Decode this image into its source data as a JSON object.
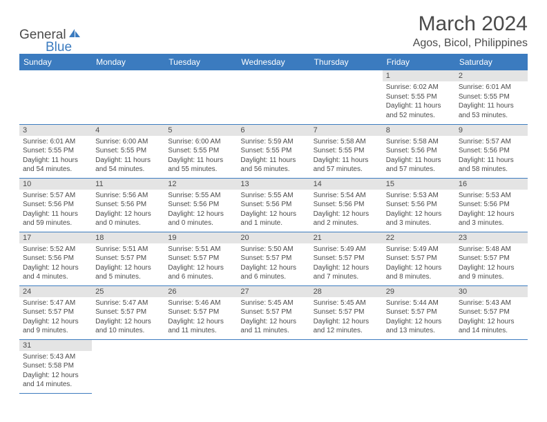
{
  "logo": {
    "text_general": "General",
    "text_blue": "Blue",
    "icon_color": "#3b7bbf"
  },
  "header": {
    "month_title": "March 2024",
    "location": "Agos, Bicol, Philippines"
  },
  "colors": {
    "header_bg": "#3b7bbf",
    "header_text": "#ffffff",
    "body_text": "#4a4a4a",
    "date_bar_bg": "#e4e4e4",
    "border": "#3b7bbf",
    "background": "#ffffff"
  },
  "day_headers": [
    "Sunday",
    "Monday",
    "Tuesday",
    "Wednesday",
    "Thursday",
    "Friday",
    "Saturday"
  ],
  "weeks": [
    [
      {
        "date": "",
        "sunrise": "",
        "sunset": "",
        "daylight": ""
      },
      {
        "date": "",
        "sunrise": "",
        "sunset": "",
        "daylight": ""
      },
      {
        "date": "",
        "sunrise": "",
        "sunset": "",
        "daylight": ""
      },
      {
        "date": "",
        "sunrise": "",
        "sunset": "",
        "daylight": ""
      },
      {
        "date": "",
        "sunrise": "",
        "sunset": "",
        "daylight": ""
      },
      {
        "date": "1",
        "sunrise": "Sunrise: 6:02 AM",
        "sunset": "Sunset: 5:55 PM",
        "daylight": "Daylight: 11 hours and 52 minutes."
      },
      {
        "date": "2",
        "sunrise": "Sunrise: 6:01 AM",
        "sunset": "Sunset: 5:55 PM",
        "daylight": "Daylight: 11 hours and 53 minutes."
      }
    ],
    [
      {
        "date": "3",
        "sunrise": "Sunrise: 6:01 AM",
        "sunset": "Sunset: 5:55 PM",
        "daylight": "Daylight: 11 hours and 54 minutes."
      },
      {
        "date": "4",
        "sunrise": "Sunrise: 6:00 AM",
        "sunset": "Sunset: 5:55 PM",
        "daylight": "Daylight: 11 hours and 54 minutes."
      },
      {
        "date": "5",
        "sunrise": "Sunrise: 6:00 AM",
        "sunset": "Sunset: 5:55 PM",
        "daylight": "Daylight: 11 hours and 55 minutes."
      },
      {
        "date": "6",
        "sunrise": "Sunrise: 5:59 AM",
        "sunset": "Sunset: 5:55 PM",
        "daylight": "Daylight: 11 hours and 56 minutes."
      },
      {
        "date": "7",
        "sunrise": "Sunrise: 5:58 AM",
        "sunset": "Sunset: 5:55 PM",
        "daylight": "Daylight: 11 hours and 57 minutes."
      },
      {
        "date": "8",
        "sunrise": "Sunrise: 5:58 AM",
        "sunset": "Sunset: 5:56 PM",
        "daylight": "Daylight: 11 hours and 57 minutes."
      },
      {
        "date": "9",
        "sunrise": "Sunrise: 5:57 AM",
        "sunset": "Sunset: 5:56 PM",
        "daylight": "Daylight: 11 hours and 58 minutes."
      }
    ],
    [
      {
        "date": "10",
        "sunrise": "Sunrise: 5:57 AM",
        "sunset": "Sunset: 5:56 PM",
        "daylight": "Daylight: 11 hours and 59 minutes."
      },
      {
        "date": "11",
        "sunrise": "Sunrise: 5:56 AM",
        "sunset": "Sunset: 5:56 PM",
        "daylight": "Daylight: 12 hours and 0 minutes."
      },
      {
        "date": "12",
        "sunrise": "Sunrise: 5:55 AM",
        "sunset": "Sunset: 5:56 PM",
        "daylight": "Daylight: 12 hours and 0 minutes."
      },
      {
        "date": "13",
        "sunrise": "Sunrise: 5:55 AM",
        "sunset": "Sunset: 5:56 PM",
        "daylight": "Daylight: 12 hours and 1 minute."
      },
      {
        "date": "14",
        "sunrise": "Sunrise: 5:54 AM",
        "sunset": "Sunset: 5:56 PM",
        "daylight": "Daylight: 12 hours and 2 minutes."
      },
      {
        "date": "15",
        "sunrise": "Sunrise: 5:53 AM",
        "sunset": "Sunset: 5:56 PM",
        "daylight": "Daylight: 12 hours and 3 minutes."
      },
      {
        "date": "16",
        "sunrise": "Sunrise: 5:53 AM",
        "sunset": "Sunset: 5:56 PM",
        "daylight": "Daylight: 12 hours and 3 minutes."
      }
    ],
    [
      {
        "date": "17",
        "sunrise": "Sunrise: 5:52 AM",
        "sunset": "Sunset: 5:56 PM",
        "daylight": "Daylight: 12 hours and 4 minutes."
      },
      {
        "date": "18",
        "sunrise": "Sunrise: 5:51 AM",
        "sunset": "Sunset: 5:57 PM",
        "daylight": "Daylight: 12 hours and 5 minutes."
      },
      {
        "date": "19",
        "sunrise": "Sunrise: 5:51 AM",
        "sunset": "Sunset: 5:57 PM",
        "daylight": "Daylight: 12 hours and 6 minutes."
      },
      {
        "date": "20",
        "sunrise": "Sunrise: 5:50 AM",
        "sunset": "Sunset: 5:57 PM",
        "daylight": "Daylight: 12 hours and 6 minutes."
      },
      {
        "date": "21",
        "sunrise": "Sunrise: 5:49 AM",
        "sunset": "Sunset: 5:57 PM",
        "daylight": "Daylight: 12 hours and 7 minutes."
      },
      {
        "date": "22",
        "sunrise": "Sunrise: 5:49 AM",
        "sunset": "Sunset: 5:57 PM",
        "daylight": "Daylight: 12 hours and 8 minutes."
      },
      {
        "date": "23",
        "sunrise": "Sunrise: 5:48 AM",
        "sunset": "Sunset: 5:57 PM",
        "daylight": "Daylight: 12 hours and 9 minutes."
      }
    ],
    [
      {
        "date": "24",
        "sunrise": "Sunrise: 5:47 AM",
        "sunset": "Sunset: 5:57 PM",
        "daylight": "Daylight: 12 hours and 9 minutes."
      },
      {
        "date": "25",
        "sunrise": "Sunrise: 5:47 AM",
        "sunset": "Sunset: 5:57 PM",
        "daylight": "Daylight: 12 hours and 10 minutes."
      },
      {
        "date": "26",
        "sunrise": "Sunrise: 5:46 AM",
        "sunset": "Sunset: 5:57 PM",
        "daylight": "Daylight: 12 hours and 11 minutes."
      },
      {
        "date": "27",
        "sunrise": "Sunrise: 5:45 AM",
        "sunset": "Sunset: 5:57 PM",
        "daylight": "Daylight: 12 hours and 11 minutes."
      },
      {
        "date": "28",
        "sunrise": "Sunrise: 5:45 AM",
        "sunset": "Sunset: 5:57 PM",
        "daylight": "Daylight: 12 hours and 12 minutes."
      },
      {
        "date": "29",
        "sunrise": "Sunrise: 5:44 AM",
        "sunset": "Sunset: 5:57 PM",
        "daylight": "Daylight: 12 hours and 13 minutes."
      },
      {
        "date": "30",
        "sunrise": "Sunrise: 5:43 AM",
        "sunset": "Sunset: 5:57 PM",
        "daylight": "Daylight: 12 hours and 14 minutes."
      }
    ],
    [
      {
        "date": "31",
        "sunrise": "Sunrise: 5:43 AM",
        "sunset": "Sunset: 5:58 PM",
        "daylight": "Daylight: 12 hours and 14 minutes."
      },
      {
        "date": "",
        "sunrise": "",
        "sunset": "",
        "daylight": ""
      },
      {
        "date": "",
        "sunrise": "",
        "sunset": "",
        "daylight": ""
      },
      {
        "date": "",
        "sunrise": "",
        "sunset": "",
        "daylight": ""
      },
      {
        "date": "",
        "sunrise": "",
        "sunset": "",
        "daylight": ""
      },
      {
        "date": "",
        "sunrise": "",
        "sunset": "",
        "daylight": ""
      },
      {
        "date": "",
        "sunrise": "",
        "sunset": "",
        "daylight": ""
      }
    ]
  ]
}
